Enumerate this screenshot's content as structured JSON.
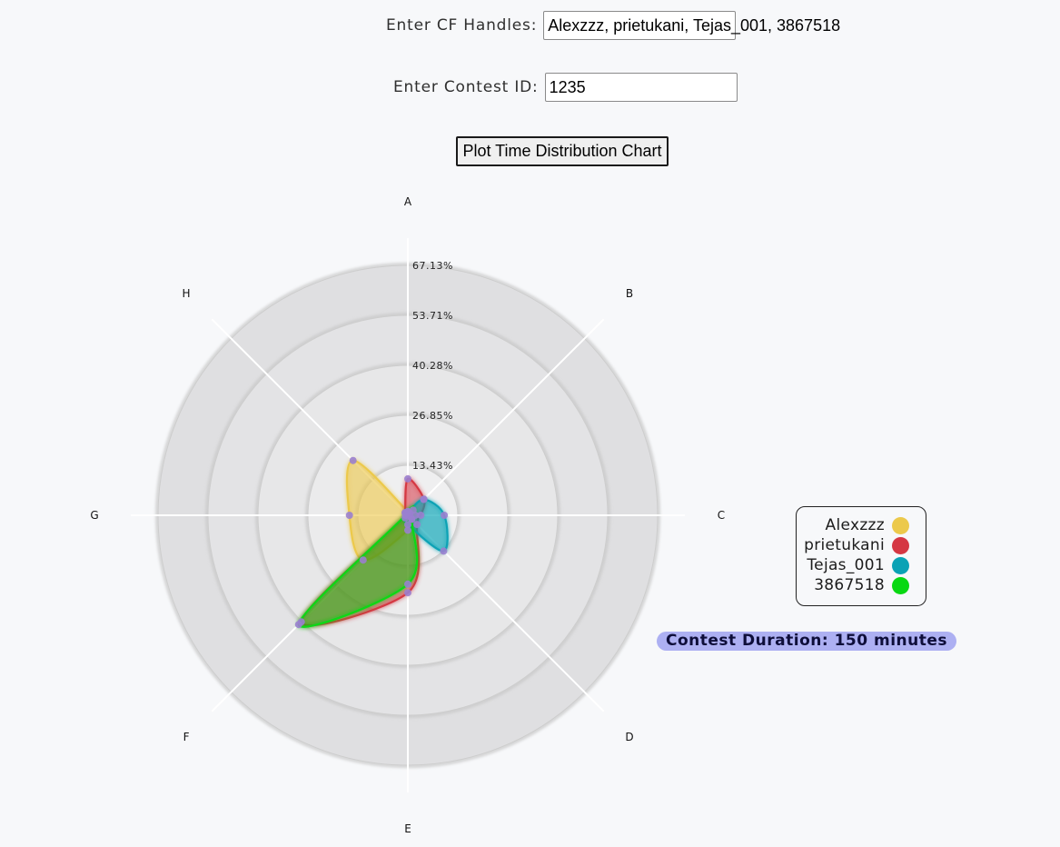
{
  "form": {
    "handles_label": "Enter CF Handles:",
    "handles_value": "Alexzzz, prietukani, Tejas_001, 3867518",
    "contest_label": "Enter Contest ID:",
    "contest_value": "1235",
    "plot_button": "Plot Time Distribution Chart"
  },
  "legend": [
    {
      "name": "Alexzzz",
      "color": "#ecc94b"
    },
    {
      "name": "prietukani",
      "color": "#d53743"
    },
    {
      "name": "Tejas_001",
      "color": "#0aa2b5"
    },
    {
      "name": "3867518",
      "color": "#08d812"
    }
  ],
  "contest_duration": "Contest Duration: 150 minutes",
  "chart_data": {
    "type": "radar",
    "axes": [
      "A",
      "B",
      "C",
      "D",
      "E",
      "F",
      "G",
      "H"
    ],
    "rings": [
      "13.43%",
      "26.85%",
      "40.28%",
      "53.71%",
      "67.13%"
    ],
    "max_value": 67.13,
    "point_color": "#9a7fcf",
    "series": [
      {
        "name": "Alexzzz",
        "color": "#ecc94b",
        "fill": "rgba(236,201,75,0.38)",
        "values": [
          1.0,
          0.8,
          0.4,
          1.5,
          4.0,
          17.0,
          15.7,
          20.8
        ]
      },
      {
        "name": "prietukani",
        "color": "#d53743",
        "fill": "rgba(213,55,67,0.33)",
        "values": [
          9.8,
          6.1,
          3.5,
          3.5,
          20.8,
          40.5,
          0.5,
          1.0
        ]
      },
      {
        "name": "Tejas_001",
        "color": "#0aa2b5",
        "fill": "rgba(10,162,181,0.40)",
        "values": [
          0.5,
          6.0,
          9.8,
          13.6,
          2.5,
          1.0,
          0.6,
          0.5
        ]
      },
      {
        "name": "3867518",
        "color": "#08d812",
        "fill": "rgba(8,200,18,0.30)",
        "values": [
          1.0,
          2.0,
          2.0,
          1.5,
          18.5,
          41.5,
          0.6,
          1.0
        ]
      }
    ]
  }
}
